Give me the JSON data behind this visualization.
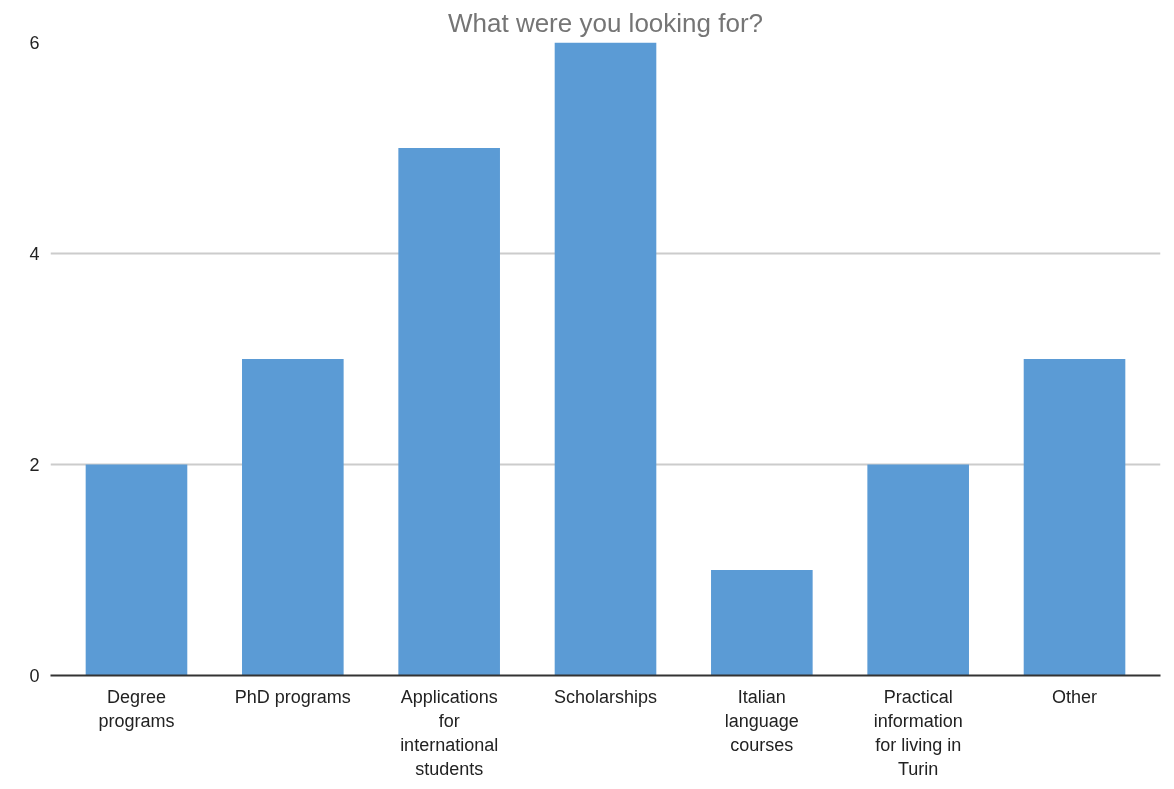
{
  "chart_data": {
    "type": "bar",
    "title": "What were you looking for?",
    "categories": [
      "Degree programs",
      "PhD programs",
      "Applications for international students",
      "Scholarships",
      "Italian language courses",
      "Practical information for living in Turin",
      "Other"
    ],
    "values": [
      2,
      3,
      5,
      6,
      1,
      2,
      3
    ],
    "color": "#5b9bd5",
    "ylim": [
      0,
      6
    ],
    "yticks": [
      0,
      2,
      4,
      6
    ],
    "grid": "y"
  }
}
